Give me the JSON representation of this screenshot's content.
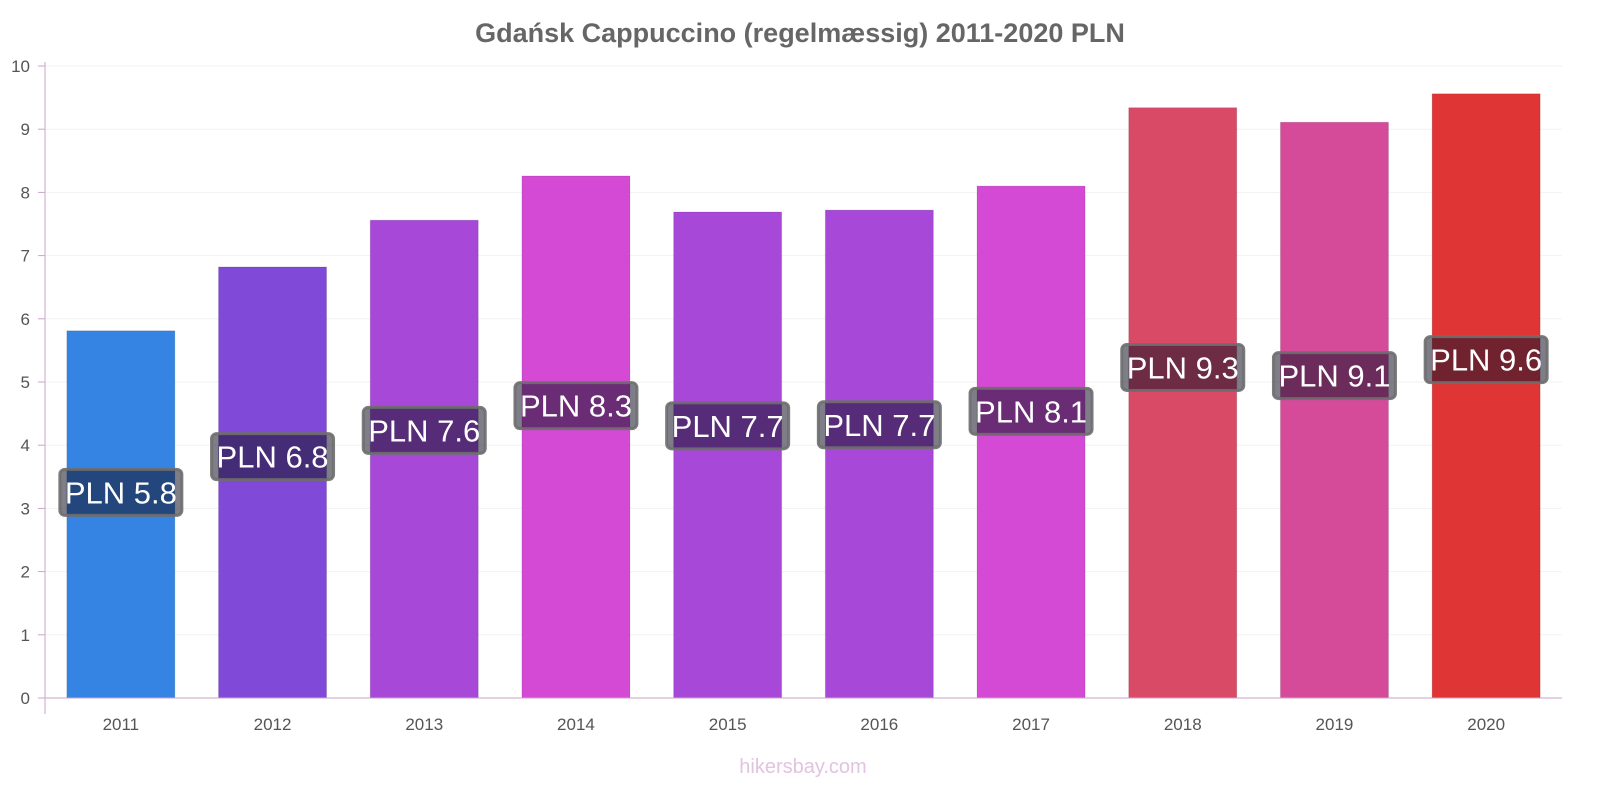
{
  "chart_data": {
    "type": "bar",
    "title": "Gdańsk Cappuccino (regelmæssig) 2011-2020 PLN",
    "xlabel": "",
    "ylabel": "",
    "ylim": [
      0,
      10
    ],
    "yticks": [
      "0",
      "1",
      "2",
      "3",
      "4",
      "5",
      "6",
      "7",
      "8",
      "9",
      "10"
    ],
    "grid": true,
    "categories": [
      "2011",
      "2012",
      "2013",
      "2014",
      "2015",
      "2016",
      "2017",
      "2018",
      "2019",
      "2020"
    ],
    "values": [
      5.81,
      6.82,
      7.56,
      8.26,
      7.69,
      7.72,
      8.1,
      9.34,
      9.11,
      9.56
    ],
    "data_labels": [
      "PLN 5.8",
      "PLN 6.8",
      "PLN 7.6",
      "PLN 8.3",
      "PLN 7.7",
      "PLN 7.7",
      "PLN 8.1",
      "PLN 9.3",
      "PLN 9.1",
      "PLN 9.6"
    ],
    "colors": [
      "#3584e4",
      "#8049d8",
      "#a748d8",
      "#d44ad4",
      "#a748d8",
      "#a748d8",
      "#d44ad4",
      "#d94a66",
      "#d64a9a",
      "#e03535"
    ]
  },
  "watermark": "hikersbay.com"
}
